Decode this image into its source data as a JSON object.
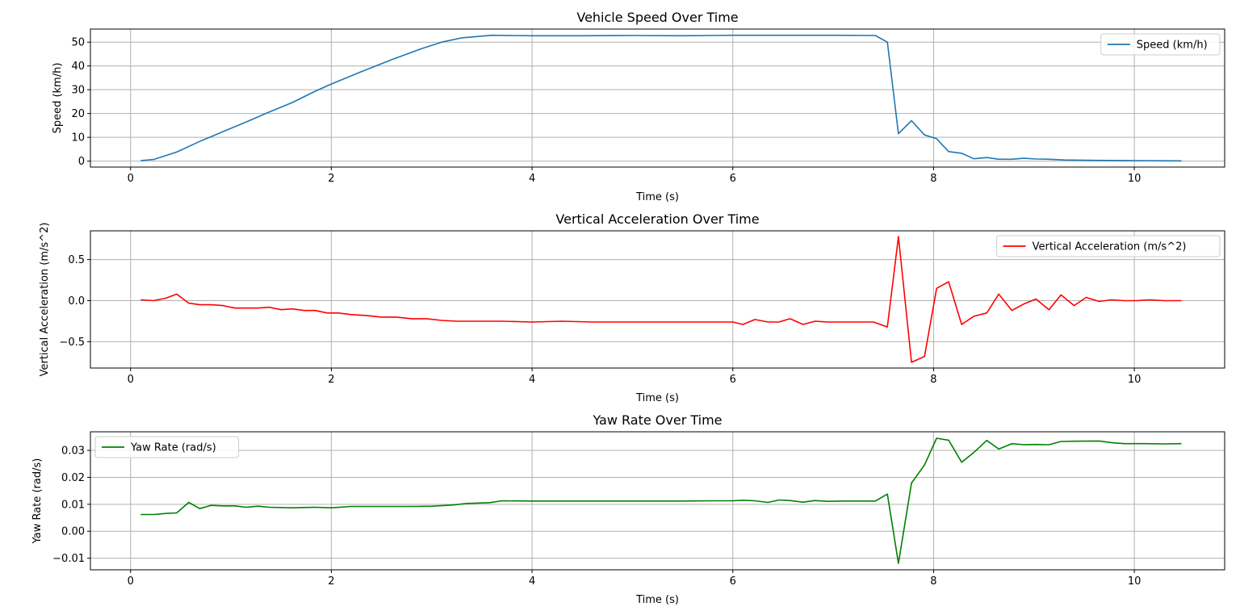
{
  "chart_data": [
    {
      "type": "line",
      "title": "Vehicle Speed Over Time",
      "xlabel": "Time (s)",
      "ylabel": "Speed (km/h)",
      "xlim": [
        -0.4,
        10.9
      ],
      "ylim": [
        -2.5,
        55.5
      ],
      "xticks": [
        0,
        2,
        4,
        6,
        8,
        10
      ],
      "yticks": [
        0,
        10,
        20,
        30,
        40,
        50
      ],
      "grid": true,
      "legend_position": "top-right",
      "series": [
        {
          "name": "Speed (km/h)",
          "color": "#1f77b4",
          "x": [
            0.1,
            0.23,
            0.46,
            0.69,
            0.92,
            1.15,
            1.38,
            1.61,
            1.84,
            2.0,
            2.3,
            2.6,
            2.9,
            3.1,
            3.3,
            3.6,
            4.0,
            4.5,
            5.0,
            5.5,
            6.0,
            6.5,
            7.0,
            7.42,
            7.54,
            7.65,
            7.78,
            7.91,
            8.03,
            8.15,
            8.28,
            8.4,
            8.53,
            8.65,
            8.78,
            8.9,
            9.02,
            9.15,
            9.3,
            9.6,
            10.0,
            10.47
          ],
          "values": [
            0.2,
            0.7,
            3.8,
            8.3,
            12.4,
            16.4,
            20.6,
            24.6,
            29.4,
            32.4,
            37.6,
            42.6,
            47.3,
            50.0,
            51.8,
            52.9,
            52.7,
            52.7,
            52.8,
            52.7,
            52.9,
            52.9,
            52.9,
            52.8,
            50.0,
            11.5,
            17.0,
            11.0,
            9.4,
            4.0,
            3.3,
            1.0,
            1.5,
            0.8,
            0.8,
            1.2,
            0.9,
            0.8,
            0.5,
            0.3,
            0.2,
            0.1
          ]
        }
      ]
    },
    {
      "type": "line",
      "title": "Vertical Acceleration Over Time",
      "xlabel": "Time (s)",
      "ylabel": "Vertical Acceleration (m/s^2)",
      "xlim": [
        -0.4,
        10.9
      ],
      "ylim": [
        -0.82,
        0.85
      ],
      "xticks": [
        0,
        2,
        4,
        6,
        8,
        10
      ],
      "yticks": [
        -0.5,
        0.0,
        0.5
      ],
      "ytick_labels": [
        "−0.5",
        "0.0",
        "0.5"
      ],
      "grid": true,
      "legend_position": "top-right",
      "series": [
        {
          "name": "Vertical Acceleration (m/s^2)",
          "color": "#ff0000",
          "x": [
            0.1,
            0.23,
            0.35,
            0.46,
            0.58,
            0.69,
            0.8,
            0.92,
            1.04,
            1.15,
            1.27,
            1.38,
            1.5,
            1.61,
            1.73,
            1.84,
            1.96,
            2.07,
            2.2,
            2.35,
            2.5,
            2.65,
            2.8,
            2.95,
            3.1,
            3.25,
            3.4,
            3.55,
            3.7,
            4.0,
            4.3,
            4.6,
            4.9,
            5.2,
            5.5,
            5.8,
            6.0,
            6.1,
            6.22,
            6.35,
            6.46,
            6.57,
            6.7,
            6.82,
            6.95,
            7.1,
            7.25,
            7.4,
            7.54,
            7.65,
            7.78,
            7.91,
            8.03,
            8.15,
            8.28,
            8.4,
            8.53,
            8.65,
            8.78,
            8.9,
            9.02,
            9.15,
            9.27,
            9.4,
            9.52,
            9.65,
            9.77,
            9.9,
            10.02,
            10.15,
            10.3,
            10.47
          ],
          "values": [
            0.01,
            0.0,
            0.03,
            0.08,
            -0.03,
            -0.05,
            -0.05,
            -0.06,
            -0.09,
            -0.09,
            -0.09,
            -0.08,
            -0.11,
            -0.1,
            -0.12,
            -0.12,
            -0.15,
            -0.15,
            -0.17,
            -0.18,
            -0.2,
            -0.2,
            -0.22,
            -0.22,
            -0.24,
            -0.25,
            -0.25,
            -0.25,
            -0.25,
            -0.26,
            -0.25,
            -0.26,
            -0.26,
            -0.26,
            -0.26,
            -0.26,
            -0.26,
            -0.29,
            -0.23,
            -0.26,
            -0.26,
            -0.22,
            -0.29,
            -0.25,
            -0.26,
            -0.26,
            -0.26,
            -0.26,
            -0.32,
            0.78,
            -0.75,
            -0.68,
            0.15,
            0.23,
            -0.29,
            -0.19,
            -0.15,
            0.08,
            -0.12,
            -0.04,
            0.02,
            -0.11,
            0.07,
            -0.06,
            0.04,
            -0.01,
            0.01,
            0.0,
            0.0,
            0.01,
            0.0,
            0.0
          ]
        }
      ]
    },
    {
      "type": "line",
      "title": "Yaw Rate Over Time",
      "xlabel": "Time (s)",
      "ylabel": "Yaw Rate (rad/s)",
      "xlim": [
        -0.4,
        10.9
      ],
      "ylim": [
        -0.0143,
        0.0369
      ],
      "xticks": [
        0,
        2,
        4,
        6,
        8,
        10
      ],
      "yticks": [
        -0.01,
        0.0,
        0.01,
        0.02,
        0.03
      ],
      "ytick_labels": [
        "−0.01",
        "0.00",
        "0.01",
        "0.02",
        "0.03"
      ],
      "grid": true,
      "legend_position": "top-left",
      "series": [
        {
          "name": "Yaw Rate (rad/s)",
          "color": "#008000",
          "x": [
            0.1,
            0.23,
            0.35,
            0.46,
            0.58,
            0.69,
            0.8,
            0.92,
            1.04,
            1.15,
            1.27,
            1.38,
            1.61,
            1.84,
            2.0,
            2.2,
            2.5,
            2.8,
            3.0,
            3.2,
            3.35,
            3.58,
            3.7,
            4.0,
            4.5,
            5.0,
            5.5,
            5.8,
            6.0,
            6.1,
            6.22,
            6.35,
            6.46,
            6.57,
            6.7,
            6.82,
            6.95,
            7.1,
            7.3,
            7.42,
            7.54,
            7.65,
            7.78,
            7.91,
            8.03,
            8.15,
            8.28,
            8.4,
            8.53,
            8.65,
            8.78,
            8.9,
            9.02,
            9.15,
            9.27,
            9.4,
            9.65,
            9.77,
            9.9,
            10.1,
            10.3,
            10.47
          ],
          "values": [
            0.0062,
            0.0062,
            0.0066,
            0.0068,
            0.0107,
            0.0084,
            0.0096,
            0.0094,
            0.0094,
            0.0089,
            0.0093,
            0.0089,
            0.0087,
            0.0089,
            0.0087,
            0.0092,
            0.0092,
            0.0092,
            0.0093,
            0.0097,
            0.0103,
            0.0106,
            0.0113,
            0.0112,
            0.0112,
            0.0112,
            0.0112,
            0.0113,
            0.0113,
            0.0115,
            0.0113,
            0.0107,
            0.0116,
            0.0114,
            0.0108,
            0.0114,
            0.0111,
            0.0112,
            0.0112,
            0.0112,
            0.0138,
            -0.0119,
            0.0179,
            0.0246,
            0.0345,
            0.0338,
            0.0256,
            0.0292,
            0.0337,
            0.0305,
            0.0325,
            0.0321,
            0.0322,
            0.0321,
            0.0333,
            0.0334,
            0.0335,
            0.0329,
            0.0325,
            0.0325,
            0.0324,
            0.0325
          ]
        }
      ]
    }
  ]
}
